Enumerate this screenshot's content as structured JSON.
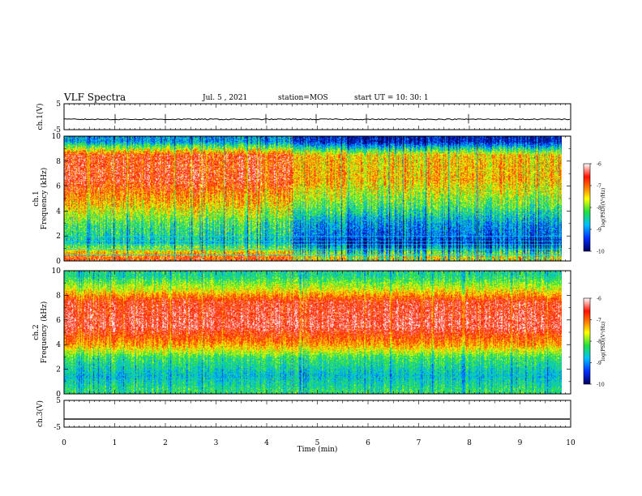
{
  "header": {
    "title": "VLF Spectra",
    "date": "Jul. 5 , 2021",
    "station": "station=MOS",
    "start": "start  UT =   10: 30: 1"
  },
  "colors": {
    "lowest": "#00006a",
    "low": "#0050ff",
    "mid_low": "#00d0ff",
    "mid": "#30e040",
    "mid_high": "#ffff00",
    "high": "#ff2000",
    "highest": "#ffffff"
  },
  "chart_data": [
    {
      "type": "line",
      "name": "ch1-waveform",
      "ylabel": "ch.1(V)",
      "ylim": [
        -5,
        5
      ],
      "yticks": [
        "5",
        "-5"
      ],
      "x": [
        0,
        10
      ],
      "values": [
        -1,
        -1
      ]
    },
    {
      "type": "heatmap",
      "name": "ch1-spectrogram",
      "ylabel": "ch.1\nFrequency (kHz)",
      "ylim": [
        0,
        10
      ],
      "yticks": [
        "0",
        "2",
        "4",
        "6",
        "8",
        "10"
      ],
      "xlim": [
        0,
        9.83
      ],
      "colorbar": {
        "label": "log(PSD)(V²/Hz)",
        "range": [
          -10,
          -6
        ],
        "ticks": [
          "-6",
          "-7",
          "-8",
          "-9",
          "-10"
        ]
      },
      "intensity_profile_by_freq_kHz": [
        {
          "f": 0.3,
          "level": -7.2
        },
        {
          "f": 1.5,
          "level": -9.0
        },
        {
          "f": 3.0,
          "level": -8.6
        },
        {
          "f": 4.5,
          "level": -7.8
        },
        {
          "f": 6.5,
          "level": -7.0
        },
        {
          "f": 8.5,
          "level": -7.1
        },
        {
          "f": 9.6,
          "level": -9.3
        }
      ],
      "time_segments_min": [
        {
          "from": 0,
          "to": 4.5,
          "level_offset": 0.4
        },
        {
          "from": 4.5,
          "to": 9.83,
          "level_offset": -0.3
        }
      ]
    },
    {
      "type": "heatmap",
      "name": "ch2-spectrogram",
      "ylabel": "ch.2\nFrequency (kHz)",
      "ylim": [
        0,
        10
      ],
      "yticks": [
        "0",
        "2",
        "4",
        "6",
        "8",
        "10"
      ],
      "xlim": [
        0,
        9.83
      ],
      "colorbar": {
        "label": "log(PSD)(V²/Hz)",
        "range": [
          -10,
          -6
        ],
        "ticks": [
          "-6",
          "-7",
          "-8",
          "-9",
          "-10"
        ]
      },
      "intensity_profile_by_freq_kHz": [
        {
          "f": 0.3,
          "level": -8.3
        },
        {
          "f": 1.5,
          "level": -8.7
        },
        {
          "f": 3.0,
          "level": -8.2
        },
        {
          "f": 4.0,
          "level": -7.2
        },
        {
          "f": 5.5,
          "level": -6.4
        },
        {
          "f": 7.5,
          "level": -6.6
        },
        {
          "f": 8.5,
          "level": -7.6
        },
        {
          "f": 9.6,
          "level": -8.4
        }
      ]
    },
    {
      "type": "line",
      "name": "ch3-waveform",
      "ylabel": "ch.3(V)",
      "ylim": [
        -5,
        5
      ],
      "yticks": [
        "5",
        "-5"
      ],
      "x": [
        0,
        10
      ],
      "values": [
        -2,
        -2
      ]
    }
  ],
  "xaxis": {
    "label": "Time (min)",
    "ticks": [
      "0",
      "1",
      "2",
      "3",
      "4",
      "5",
      "6",
      "7",
      "8",
      "9",
      "10"
    ],
    "xlim": [
      0,
      10
    ]
  }
}
